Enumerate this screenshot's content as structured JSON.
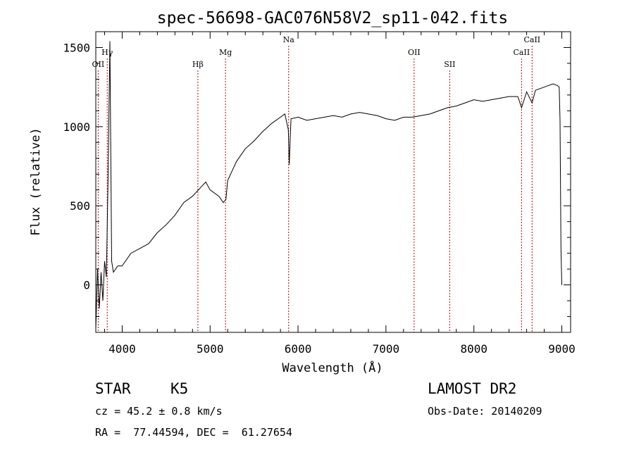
{
  "chart_data": {
    "type": "line",
    "title": "spec-56698-GAC076N58V2_sp11-042.fits",
    "xlabel": "Wavelength (Å)",
    "ylabel": "Flux (relative)",
    "xlim": [
      3700,
      9100
    ],
    "ylim": [
      -300,
      1600
    ],
    "x_ticks": [
      4000,
      5000,
      6000,
      7000,
      8000,
      9000
    ],
    "y_ticks": [
      0,
      500,
      1000,
      1500
    ],
    "grid": false,
    "series": [
      {
        "x": [
          3700,
          3720,
          3740,
          3760,
          3780,
          3800,
          3820,
          3840,
          3860,
          3880,
          3900,
          3950,
          4000,
          4100,
          4200,
          4300,
          4400,
          4500,
          4600,
          4700,
          4800,
          4900,
          4950,
          5000,
          5100,
          5150,
          5180,
          5200,
          5300,
          5400,
          5500,
          5600,
          5700,
          5800,
          5850,
          5890,
          5900,
          5920,
          6000,
          6100,
          6200,
          6300,
          6400,
          6500,
          6600,
          6700,
          6800,
          6900,
          7000,
          7100,
          7200,
          7300,
          7400,
          7500,
          7600,
          7700,
          7800,
          7900,
          8000,
          8100,
          8200,
          8300,
          8400,
          8500,
          8542,
          8600,
          8662,
          8700,
          8800,
          8900,
          8950,
          8970,
          8980,
          8990,
          9000
        ],
        "y": [
          -280,
          100,
          -150,
          80,
          -100,
          150,
          50,
          700,
          1540,
          150,
          80,
          120,
          120,
          200,
          230,
          260,
          330,
          380,
          440,
          520,
          560,
          620,
          650,
          600,
          560,
          520,
          540,
          660,
          780,
          860,
          910,
          970,
          1020,
          1060,
          1080,
          980,
          760,
          1050,
          1060,
          1040,
          1050,
          1060,
          1070,
          1060,
          1080,
          1090,
          1080,
          1070,
          1050,
          1040,
          1060,
          1060,
          1070,
          1080,
          1100,
          1120,
          1130,
          1150,
          1170,
          1160,
          1170,
          1180,
          1190,
          1190,
          1120,
          1220,
          1150,
          1230,
          1250,
          1270,
          1260,
          1250,
          1040,
          240,
          0
        ]
      }
    ],
    "line_markers": [
      {
        "label": "OII",
        "x": 3727,
        "row": 2
      },
      {
        "label": "Hγ",
        "x": 3830,
        "row": 1
      },
      {
        "label": "Hβ",
        "x": 4861,
        "row": 2
      },
      {
        "label": "Mg",
        "x": 5175,
        "row": 1
      },
      {
        "label": "Na",
        "x": 5893,
        "row": 0
      },
      {
        "label": "OII",
        "x": 7320,
        "row": 1
      },
      {
        "label": "SII",
        "x": 7725,
        "row": 2
      },
      {
        "label": "CaII",
        "x": 8542,
        "row": 1
      },
      {
        "label": "CaII",
        "x": 8662,
        "row": 0
      }
    ],
    "colors": {
      "axes": "#000000",
      "spectrum": "#000000",
      "markers": "#c00000"
    }
  },
  "info": {
    "object_class": "STAR",
    "subclass": "K5",
    "survey": "LAMOST DR2",
    "cz": "cz = 45.2 ± 0.8 km/s",
    "obs_date": "Obs-Date: 20140209",
    "coords": "RA =  77.44594, DEC =  61.27654"
  }
}
